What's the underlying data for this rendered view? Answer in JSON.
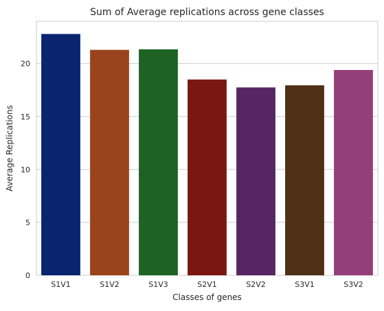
{
  "chart_data": {
    "type": "bar",
    "title": "Sum of Average replications across gene classes",
    "xlabel": "Classes of genes",
    "ylabel": "Average Replications",
    "categories": [
      "S1V1",
      "S1V2",
      "S1V3",
      "S2V1",
      "S2V2",
      "S3V1",
      "S3V2"
    ],
    "values": [
      22.8,
      21.3,
      21.35,
      18.5,
      17.75,
      17.95,
      19.4
    ],
    "colors": [
      "#0b2470",
      "#9a441d",
      "#1e6323",
      "#7a1711",
      "#552663",
      "#4f2f16",
      "#943f7a"
    ],
    "ylim": [
      0,
      24
    ],
    "yticks": [
      0,
      5,
      10,
      15,
      20
    ],
    "grid": true
  }
}
